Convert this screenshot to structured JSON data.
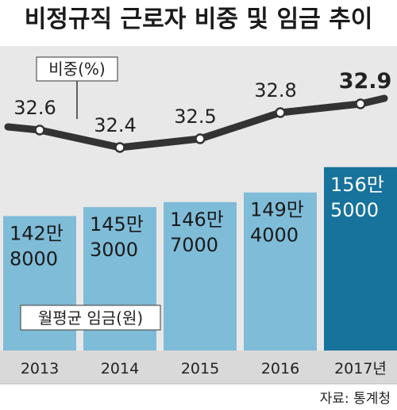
{
  "title": "비정규직 근로자 비중 및 임금 추이",
  "source": "자료: 통계청",
  "colors": {
    "bar": "#7fbcd8",
    "bar_highlight": "#17729c",
    "line": "#333333",
    "bg_band": "#e8e8e8",
    "axis_band": "#d9d9d9"
  },
  "chart_data": [
    {
      "type": "line",
      "legend": "비중(%)",
      "categories": [
        "2013",
        "2014",
        "2015",
        "2016",
        "2017년"
      ],
      "values": [
        32.6,
        32.4,
        32.5,
        32.8,
        32.9
      ],
      "value_labels": [
        "32.6",
        "32.4",
        "32.5",
        "32.8",
        "32.9"
      ]
    },
    {
      "type": "bar",
      "legend": "월평균 임금(원)",
      "categories": [
        "2013",
        "2014",
        "2015",
        "2016",
        "2017년"
      ],
      "values": [
        1428000,
        1453000,
        1467000,
        1494000,
        1565000
      ],
      "value_labels": [
        [
          "142만",
          "8000"
        ],
        [
          "145만",
          "3000"
        ],
        [
          "146만",
          "7000"
        ],
        [
          "149만",
          "4000"
        ],
        [
          "156만",
          "5000"
        ]
      ],
      "highlight_index": 4
    }
  ]
}
